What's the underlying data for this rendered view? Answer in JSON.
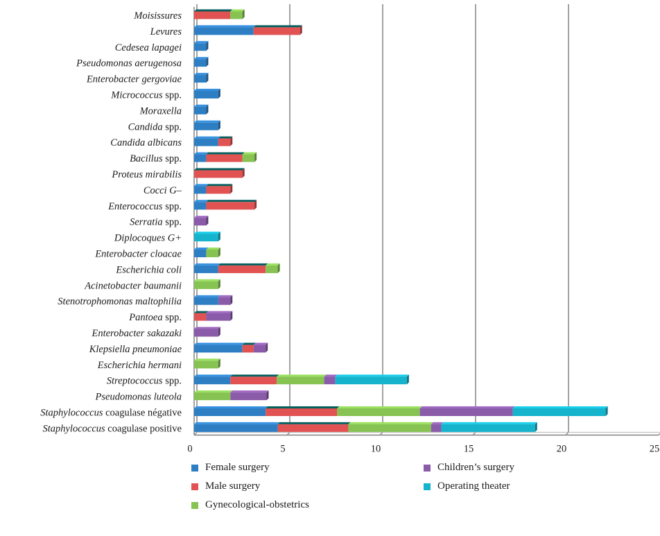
{
  "chart_data": {
    "type": "bar",
    "orientation": "horizontal",
    "stacked": true,
    "title": "",
    "xlabel": "",
    "ylabel": "",
    "xlim": [
      0,
      25
    ],
    "xticks": [
      "0",
      "5",
      "10",
      "15",
      "20",
      "25"
    ],
    "grid": true,
    "legend_position": "bottom",
    "categories": [
      "Moisissures",
      "Levures",
      "Cedesea lapagei",
      "Pseudomonas aerugenosa",
      "Enterobacter gergoviae",
      "Micrococcus spp.",
      "Moraxella",
      "Candida spp.",
      "Candida albicans",
      "Bacillus spp.",
      "Proteus mirabilis",
      "Cocci G–",
      "Enterococcus spp.",
      "Serratia spp.",
      "Diplocoques G+",
      "Enterobacter cloacae",
      "Escherichia coli",
      "Acinetobacter baumanii",
      "Stenotrophomonas maltophilia",
      "Pantoea spp.",
      "Enterobacter sakazaki",
      "Klepsiella pneumoniae",
      "Escherichia hermani",
      "Streptococcus spp.",
      "Pseudomonas luteola",
      "Staphylococcus coagulase négative",
      "Staphylococcus coagulase positive"
    ],
    "series": [
      {
        "name": "Female surgery",
        "color": "#2e7ec3",
        "values": [
          0,
          3.2,
          0.65,
          0.65,
          0.65,
          1.3,
          0.65,
          1.3,
          1.3,
          0.65,
          0,
          0.65,
          0.65,
          0,
          0,
          0.65,
          1.3,
          0,
          1.3,
          0,
          0,
          2.6,
          0,
          1.95,
          0,
          3.85,
          4.5
        ]
      },
      {
        "name": "Male surgery",
        "color": "#e15252",
        "values": [
          1.95,
          2.5,
          0,
          0,
          0,
          0,
          0,
          0,
          0.65,
          1.95,
          2.6,
          1.3,
          2.6,
          0,
          0,
          0,
          2.55,
          0,
          0,
          0.65,
          0,
          0.6,
          0,
          2.5,
          0,
          3.85,
          3.8
        ]
      },
      {
        "name": "Gynecological-obstetrics",
        "color": "#86c352",
        "values": [
          0.65,
          0,
          0,
          0,
          0,
          0,
          0,
          0,
          0,
          0.65,
          0,
          0,
          0,
          0,
          0,
          0.65,
          0.65,
          1.3,
          0,
          0,
          0,
          0,
          1.3,
          2.55,
          1.95,
          4.45,
          4.45
        ]
      },
      {
        "name": "Children’s surgery",
        "color": "#8a5ba8",
        "values": [
          0,
          0,
          0,
          0,
          0,
          0,
          0,
          0,
          0,
          0,
          0,
          0,
          0,
          0.65,
          0,
          0,
          0,
          0,
          0.65,
          1.3,
          1.3,
          0.65,
          0,
          0.6,
          1.95,
          5.0,
          0.55
        ]
      },
      {
        "name": "Operating theater",
        "color": "#16b3cc",
        "values": [
          0,
          0,
          0,
          0,
          0,
          0,
          0,
          0,
          0,
          0,
          0,
          0,
          0,
          0,
          1.3,
          0,
          0,
          0,
          0,
          0,
          0,
          0,
          0,
          3.85,
          0,
          5.0,
          5.05
        ]
      }
    ]
  }
}
